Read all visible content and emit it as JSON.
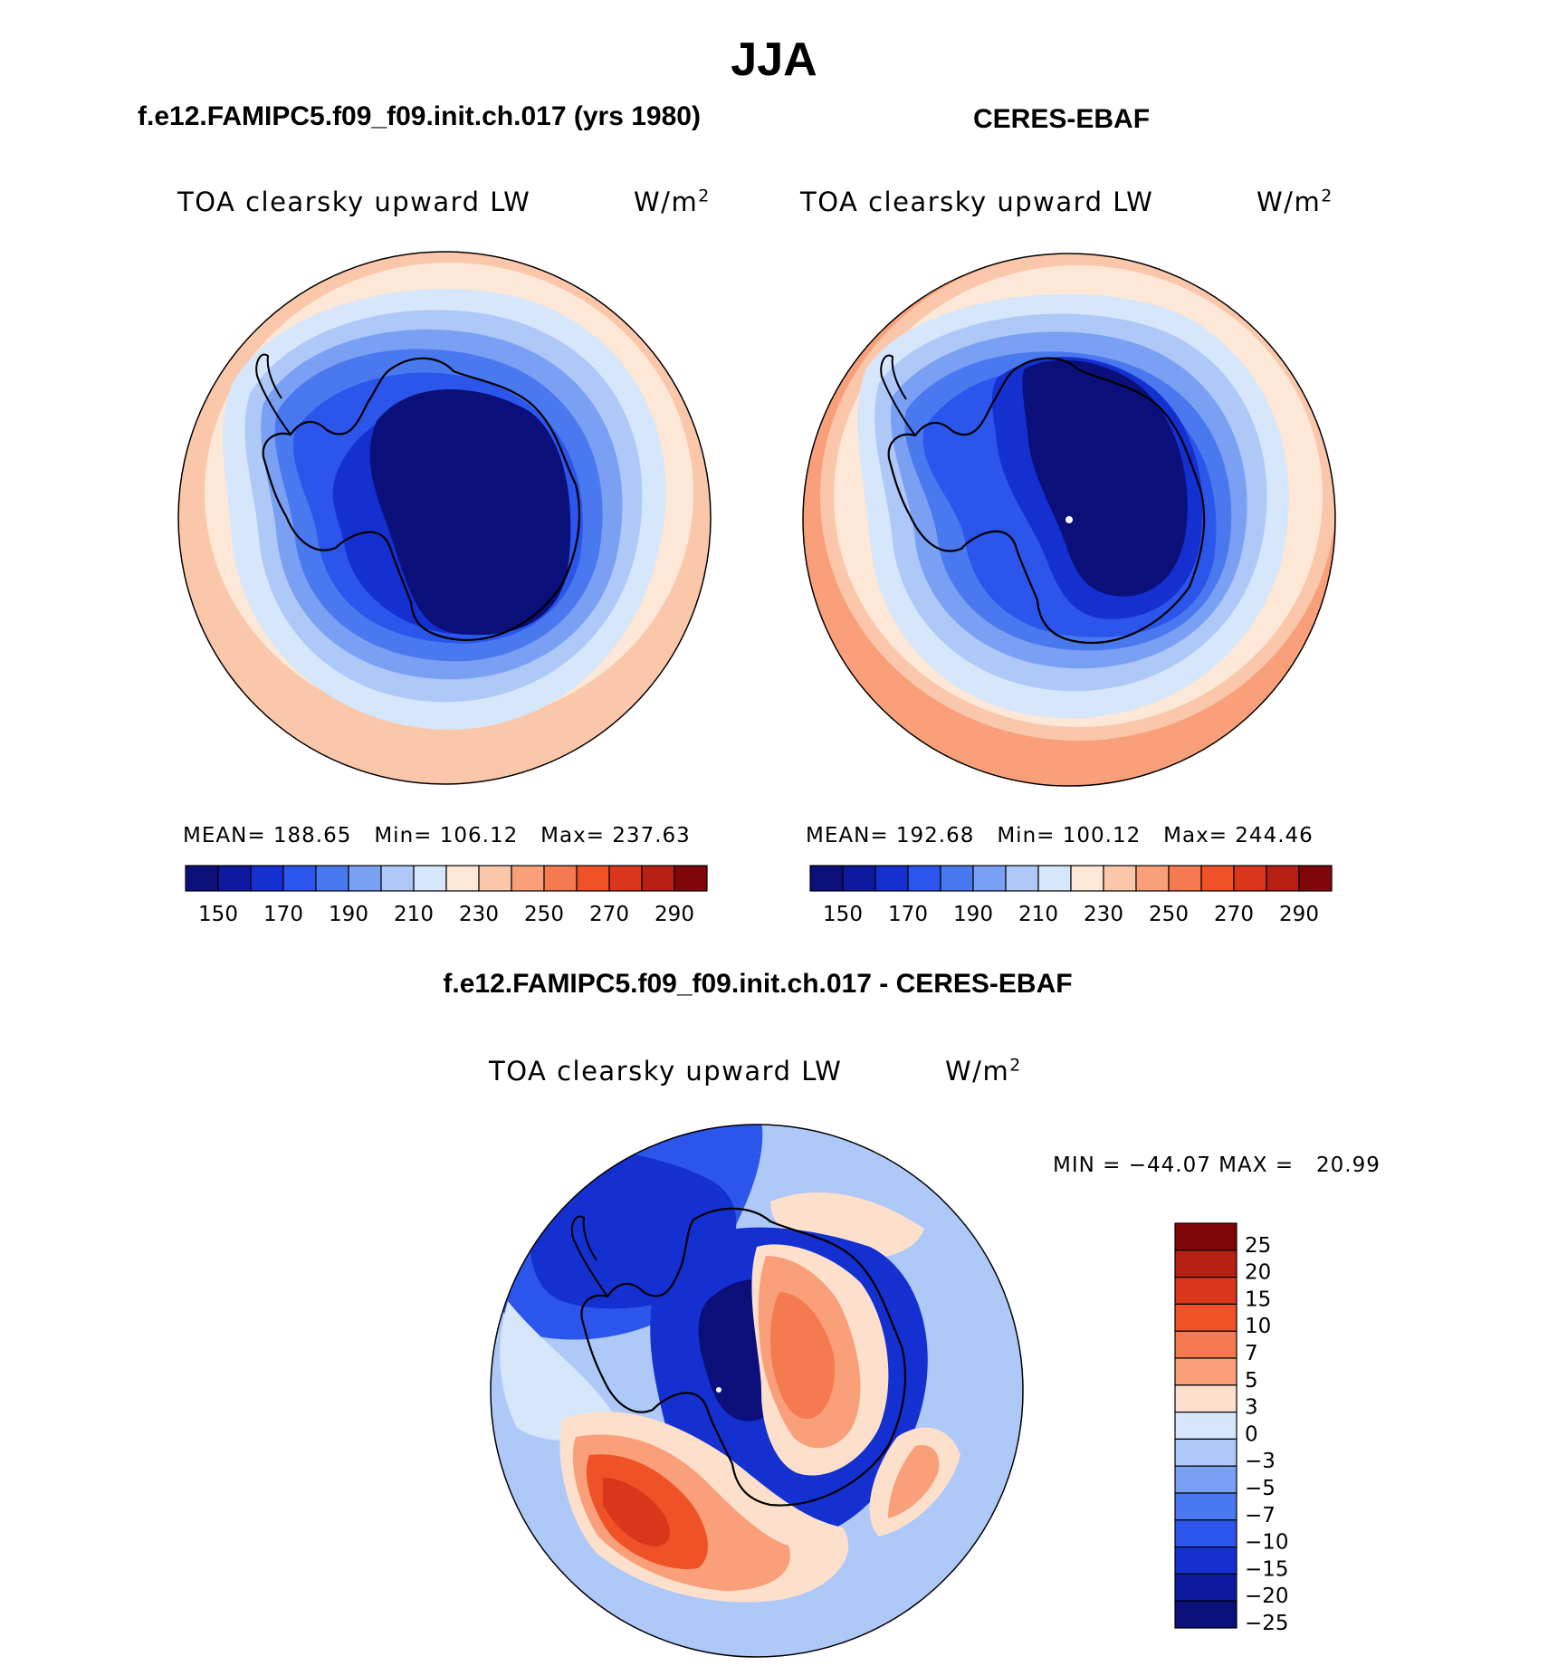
{
  "chart_data": [
    {
      "type": "heatmap",
      "panel": "model",
      "title": "f.e12.FAMIPC5.f09_f09.init.ch.017 (yrs 1980)",
      "variable": "TOA clearsky upward LW",
      "units": "W/m",
      "units_exp": "2",
      "projection": "south polar stereographic",
      "stats": {
        "mean_label": "MEAN=",
        "mean": "188.65",
        "min_label": "Min=",
        "min": "106.12",
        "max_label": "Max=",
        "max": "237.63"
      },
      "colorbar": {
        "ticks": [
          "150",
          "170",
          "190",
          "210",
          "230",
          "250",
          "270",
          "290"
        ],
        "levels": [
          140,
          150,
          160,
          170,
          180,
          190,
          200,
          210,
          220,
          230,
          240,
          250,
          260,
          270,
          280,
          290
        ],
        "orientation": "horizontal"
      }
    },
    {
      "type": "heatmap",
      "panel": "obs",
      "title": "CERES-EBAF",
      "variable": "TOA clearsky upward LW",
      "units": "W/m",
      "units_exp": "2",
      "projection": "south polar stereographic",
      "stats": {
        "mean_label": "MEAN=",
        "mean": "192.68",
        "min_label": "Min=",
        "min": "100.12",
        "max_label": "Max=",
        "max": "244.46"
      },
      "colorbar": {
        "ticks": [
          "150",
          "170",
          "190",
          "210",
          "230",
          "250",
          "270",
          "290"
        ],
        "levels": [
          140,
          150,
          160,
          170,
          180,
          190,
          200,
          210,
          220,
          230,
          240,
          250,
          260,
          270,
          280,
          290
        ],
        "orientation": "horizontal"
      }
    },
    {
      "type": "heatmap",
      "panel": "diff",
      "title": "f.e12.FAMIPC5.f09_f09.init.ch.017 - CERES-EBAF",
      "variable": "TOA clearsky upward LW",
      "units": "W/m",
      "units_exp": "2",
      "projection": "south polar stereographic",
      "stats": {
        "min_label": "MIN =",
        "min": "−44.07",
        "max_label": "MAX =",
        "max": "20.99"
      },
      "colorbar": {
        "ticks": [
          "25",
          "20",
          "15",
          "10",
          "7",
          "5",
          "3",
          "0",
          "−3",
          "−5",
          "−7",
          "−10",
          "−15",
          "−20",
          "−25"
        ],
        "levels": [
          25,
          20,
          15,
          10,
          7,
          5,
          3,
          0,
          -3,
          -5,
          -7,
          -10,
          -15,
          -20,
          -25
        ],
        "orientation": "vertical"
      }
    }
  ],
  "figure": {
    "season_title": "JJA"
  },
  "palette": {
    "abs": [
      "#0a0f7a",
      "#0d1aa0",
      "#1530d0",
      "#2b55eb",
      "#4a78ef",
      "#7aa0f3",
      "#aec8f8",
      "#d6e6fb",
      "#fde7d7",
      "#fbc7aa",
      "#f9a07a",
      "#f57a50",
      "#ef5226",
      "#d9361b",
      "#b51f14",
      "#7f0609"
    ],
    "diff": [
      "#7f0609",
      "#b51f14",
      "#d9361b",
      "#ef5226",
      "#f57a50",
      "#f9a07a",
      "#fde0cc",
      "#d6e6fb",
      "#aec8f8",
      "#7aa0f3",
      "#4a78ef",
      "#2b55eb",
      "#1530d0",
      "#0d1aa0",
      "#0a0f7a"
    ]
  }
}
